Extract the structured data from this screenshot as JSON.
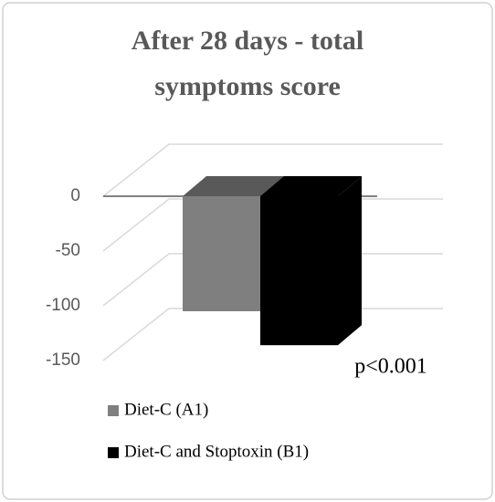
{
  "chart_data": {
    "type": "bar3d",
    "title": "After 28 days - total symptoms score",
    "series": [
      {
        "name": "Diet-C (A1)",
        "color": "#7f7f7f",
        "values": [
          -105
        ]
      },
      {
        "name": "Diet-C and Stoptoxin (B1)",
        "color": "#000000",
        "values": [
          -136
        ]
      }
    ],
    "ylim": [
      -150,
      0
    ],
    "yticks": [
      0,
      -50,
      -100,
      -150
    ],
    "grid": true,
    "annotation": "p<0.001",
    "legend": "bottom"
  }
}
